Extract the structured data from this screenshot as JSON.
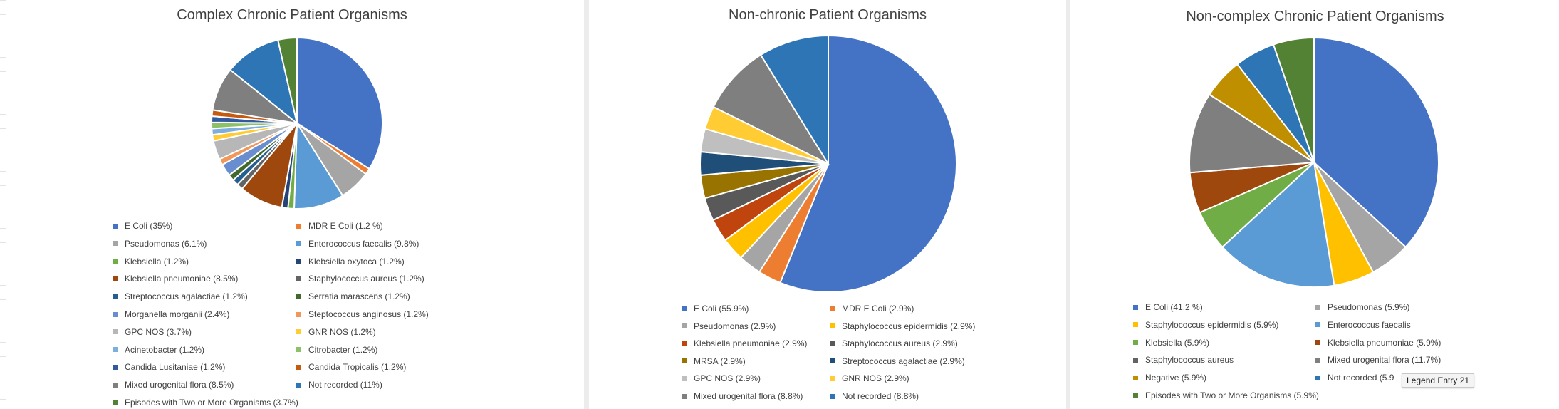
{
  "chart_data": [
    {
      "type": "pie",
      "title": "Complex Chronic Patient Organisms",
      "slices": [
        {
          "label": "E Coli (35%)",
          "value": 35,
          "color": "#4472C4"
        },
        {
          "label": "MDR E Coli (1.2 %)",
          "value": 1.2,
          "color": "#ED7D31"
        },
        {
          "label": "Pseudomonas (6.1%)",
          "value": 6.1,
          "color": "#A5A5A5"
        },
        {
          "label": "Enterococcus faecalis (9.8%)",
          "value": 9.8,
          "color": "#5B9BD5"
        },
        {
          "label": "Klebsiella (1.2%)",
          "value": 1.2,
          "color": "#70AD47"
        },
        {
          "label": "Klebsiella oxytoca (1.2%)",
          "value": 1.2,
          "color": "#264478"
        },
        {
          "label": "Klebsiella pneumoniae (8.5%)",
          "value": 8.5,
          "color": "#9E480E"
        },
        {
          "label": "Staphylococcus aureus (1.2%)",
          "value": 1.2,
          "color": "#636363"
        },
        {
          "label": "Streptococcus agalactiae (1.2%)",
          "value": 1.2,
          "color": "#255E91"
        },
        {
          "label": "Serratia marascens (1.2%)",
          "value": 1.2,
          "color": "#43682B"
        },
        {
          "label": "Morganella morganii (2.4%)",
          "value": 2.4,
          "color": "#698ED0"
        },
        {
          "label": "Steptococcus anginosus (1.2%)",
          "value": 1.2,
          "color": "#F1975A"
        },
        {
          "label": "GPC NOS (3.7%)",
          "value": 3.7,
          "color": "#B7B7B7"
        },
        {
          "label": "GNR NOS (1.2%)",
          "value": 1.2,
          "color": "#FFCD33"
        },
        {
          "label": "Acinetobacter (1.2%)",
          "value": 1.2,
          "color": "#7CAFDD"
        },
        {
          "label": "Citrobacter (1.2%)",
          "value": 1.2,
          "color": "#8CC168"
        },
        {
          "label": "Candida Lusitaniae (1.2%)",
          "value": 1.2,
          "color": "#335AA1"
        },
        {
          "label": "Candida Tropicalis (1.2%)",
          "value": 1.2,
          "color": "#C55A11"
        },
        {
          "label": "Mixed urogenital flora (8.5%)",
          "value": 8.5,
          "color": "#7F7F7F"
        },
        {
          "label": "Not recorded (11%)",
          "value": 11,
          "color": "#2E75B6"
        },
        {
          "label": "Episodes with Two or More Organisms (3.7%)",
          "value": 3.7,
          "color": "#548235"
        }
      ]
    },
    {
      "type": "pie",
      "title": "Non-chronic Patient Organisms",
      "slices": [
        {
          "label": "E Coli (55.9%)",
          "value": 55.9,
          "color": "#4472C4"
        },
        {
          "label": "MDR E Coli (2.9%)",
          "value": 2.9,
          "color": "#ED7D31"
        },
        {
          "label": "Pseudomonas (2.9%)",
          "value": 2.9,
          "color": "#A5A5A5"
        },
        {
          "label": "Staphylococcus epidermidis (2.9%)",
          "value": 2.9,
          "color": "#FFC000"
        },
        {
          "label": "Klebsiella pneumoniae (2.9%)",
          "value": 2.9,
          "color": "#C0440E"
        },
        {
          "label": "Staphylococcus aureus (2.9%)",
          "value": 2.9,
          "color": "#595959"
        },
        {
          "label": "MRSA (2.9%)",
          "value": 2.9,
          "color": "#997300"
        },
        {
          "label": "Streptococcus agalactiae (2.9%)",
          "value": 2.9,
          "color": "#1F4E79"
        },
        {
          "label": "GPC NOS (2.9%)",
          "value": 2.9,
          "color": "#BFBFBF"
        },
        {
          "label": "GNR NOS (2.9%)",
          "value": 2.9,
          "color": "#FFCD33"
        },
        {
          "label": "Mixed urogenital flora (8.8%)",
          "value": 8.8,
          "color": "#7F7F7F"
        },
        {
          "label": "Not recorded (8.8%)",
          "value": 8.8,
          "color": "#2E75B6"
        }
      ]
    },
    {
      "type": "pie",
      "title": "Non-complex Chronic Patient Organisms",
      "slices": [
        {
          "label": "E Coli (41.2 %)",
          "value": 41.2,
          "color": "#4472C4"
        },
        {
          "label": "Pseudomonas (5.9%)",
          "value": 5.9,
          "color": "#A5A5A5"
        },
        {
          "label": "Staphylococcus epidermidis (5.9%)",
          "value": 5.9,
          "color": "#FFC000"
        },
        {
          "label": "Enterococcus faecalis",
          "value": 17.6,
          "color": "#5B9BD5"
        },
        {
          "label": "Klebsiella (5.9%)",
          "value": 5.9,
          "color": "#70AD47"
        },
        {
          "label": "Klebsiella pneumoniae (5.9%)",
          "value": 5.9,
          "color": "#9E480E"
        },
        {
          "label": "Staphylococcus aureus",
          "value": 0,
          "color": "#636363"
        },
        {
          "label": "Mixed urogenital flora (11.7%)",
          "value": 11.7,
          "color": "#7F7F7F"
        },
        {
          "label": "Negative (5.9%)",
          "value": 5.9,
          "color": "#BF8F00"
        },
        {
          "label": "Not recorded (5.9",
          "value": 5.9,
          "color": "#2E75B6"
        },
        {
          "label": "Episodes with Two or More Organisms (5.9%)",
          "value": 5.9,
          "color": "#548235"
        }
      ]
    }
  ],
  "tooltip": {
    "text": "Legend Entry 21"
  }
}
